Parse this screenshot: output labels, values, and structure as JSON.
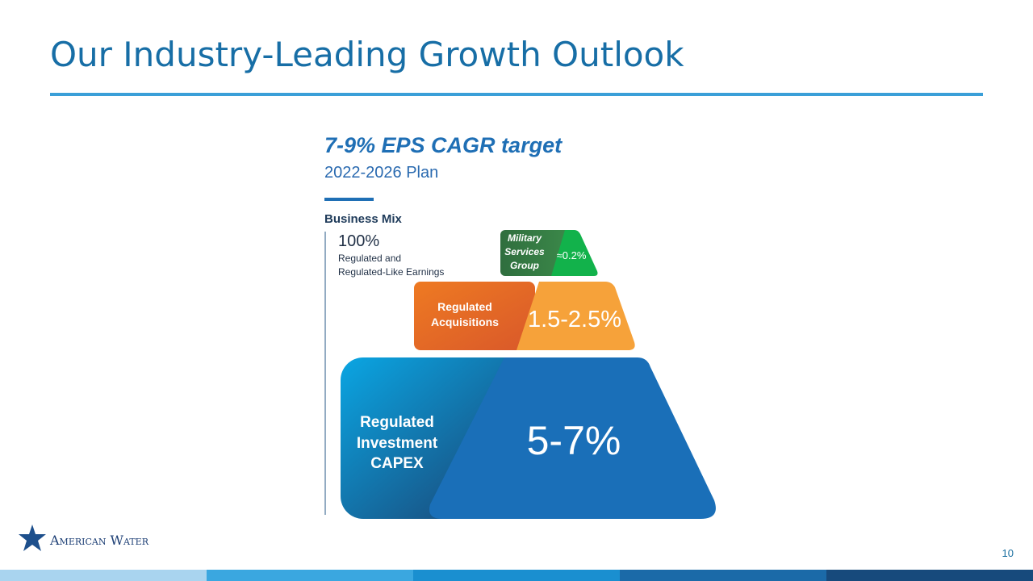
{
  "header": {
    "title": "Our Industry-Leading Growth Outlook"
  },
  "outlook": {
    "target": "7-9% EPS CAGR target",
    "plan": "2022-2026 Plan"
  },
  "business_mix": {
    "label": "Business Mix",
    "share": "100%",
    "description": [
      "Regulated and",
      "Regulated-Like Earnings"
    ]
  },
  "tiers": [
    {
      "label": [
        "Military",
        "Services",
        "Group"
      ],
      "value": "≈0.2%"
    },
    {
      "label": [
        "Regulated",
        "Acquisitions"
      ],
      "value": "1.5-2.5%"
    },
    {
      "label": [
        "Regulated",
        "Investment",
        "CAPEX"
      ],
      "value": "5-7%"
    }
  ],
  "footer": {
    "logo": "American Water",
    "page": "10"
  }
}
